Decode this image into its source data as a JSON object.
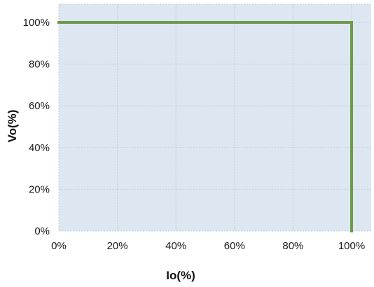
{
  "chart_data": {
    "type": "line",
    "title": "",
    "xlabel": "Io(%)",
    "ylabel": "Vo(%)",
    "xlim": [
      0,
      100
    ],
    "ylim": [
      0,
      100
    ],
    "x_ticks": [
      "0%",
      "20%",
      "40%",
      "60%",
      "80%",
      "100%"
    ],
    "y_ticks": [
      "0%",
      "20%",
      "40%",
      "60%",
      "80%",
      "100%"
    ],
    "x_tick_values": [
      0,
      20,
      40,
      60,
      80,
      100
    ],
    "y_tick_values": [
      0,
      20,
      40,
      60,
      80,
      100
    ],
    "grid": true,
    "legend": "none",
    "series": [
      {
        "x": [
          0,
          100,
          100
        ],
        "y": [
          100,
          100,
          0
        ]
      }
    ],
    "colors": {
      "plot_background": "#dde7f2",
      "grid": "#c7ccd1",
      "series_line": "#6f9a4a"
    }
  }
}
